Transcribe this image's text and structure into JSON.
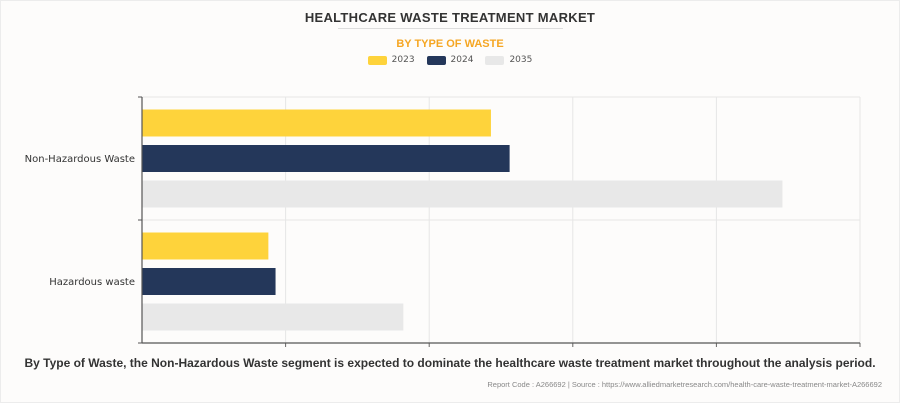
{
  "chart_data": {
    "type": "bar",
    "orientation": "horizontal",
    "title": "HEALTHCARE WASTE TREATMENT MARKET",
    "subtitle": "BY TYPE OF WASTE",
    "xlabel": "",
    "ylabel": "",
    "categories": [
      "Non-Hazardous Waste",
      "Hazardous waste"
    ],
    "series": [
      {
        "name": "2023",
        "color": "#fed33b",
        "values": [
          2.43,
          0.88
        ]
      },
      {
        "name": "2024",
        "color": "#24375a",
        "values": [
          2.56,
          0.93
        ]
      },
      {
        "name": "2035",
        "color": "#e8e8e8",
        "values": [
          4.46,
          1.82
        ]
      }
    ],
    "xlim": [
      0,
      5
    ],
    "x_tick_labels_shown": false,
    "grid": true,
    "legend": "top-center",
    "value_units": "relative (no axis tick labels shown)"
  },
  "caption": "By Type of Waste, the Non-Hazardous Waste segment is expected to dominate the healthcare waste treatment market throughout the analysis period.",
  "source": "Report Code : A266692  |  Source : https://www.alliedmarketresearch.com/health-care-waste-treatment-market-A266692",
  "colors": {
    "title": "#333333",
    "subtitle": "#f5a623",
    "background": "#fdfcfb"
  }
}
